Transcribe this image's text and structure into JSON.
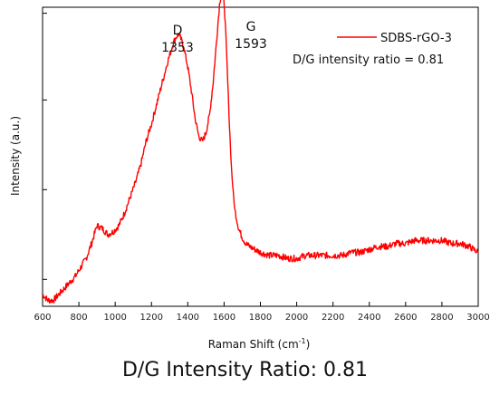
{
  "chart_data": {
    "type": "line",
    "title": "",
    "xlabel": "Raman Shift (cm",
    "xlabel_sup": "-1",
    "xlabel_close": ")",
    "ylabel": "Intensity (a.u.)",
    "xlim": [
      600,
      3000
    ],
    "ylim": [
      0,
      1
    ],
    "x_ticks": [
      "600",
      "800",
      "1000",
      "1200",
      "1400",
      "1600",
      "1800",
      "2000",
      "2200",
      "2400",
      "2600",
      "2800",
      "3000"
    ],
    "y_tick_values": [
      0.09,
      0.39,
      0.69,
      0.98
    ],
    "show_y_tick_labels": false,
    "grid": false,
    "legend_position": "top-right",
    "series": [
      {
        "name": "SDBS-rGO-3",
        "color": "#ff0000",
        "x": [
          600,
          630,
          660,
          690,
          720,
          750,
          780,
          810,
          840,
          870,
          900,
          930,
          960,
          990,
          1020,
          1050,
          1080,
          1110,
          1140,
          1170,
          1200,
          1230,
          1260,
          1290,
          1320,
          1335,
          1350,
          1365,
          1380,
          1400,
          1420,
          1440,
          1460,
          1480,
          1500,
          1520,
          1540,
          1560,
          1575,
          1585,
          1593,
          1600,
          1610,
          1620,
          1630,
          1640,
          1650,
          1660,
          1680,
          1700,
          1720,
          1740,
          1770,
          1800,
          1850,
          1900,
          1950,
          2000,
          2050,
          2100,
          2150,
          2200,
          2250,
          2300,
          2350,
          2400,
          2450,
          2500,
          2550,
          2600,
          2650,
          2700,
          2750,
          2800,
          2850,
          2900,
          2950,
          3000
        ],
        "y": [
          0.04,
          0.02,
          0.02,
          0.04,
          0.06,
          0.08,
          0.1,
          0.13,
          0.16,
          0.21,
          0.27,
          0.26,
          0.24,
          0.25,
          0.27,
          0.31,
          0.36,
          0.41,
          0.47,
          0.55,
          0.61,
          0.68,
          0.75,
          0.82,
          0.88,
          0.9,
          0.91,
          0.89,
          0.86,
          0.8,
          0.72,
          0.63,
          0.57,
          0.55,
          0.58,
          0.64,
          0.75,
          0.9,
          1.01,
          1.05,
          1.06,
          1.02,
          0.9,
          0.75,
          0.6,
          0.47,
          0.38,
          0.32,
          0.26,
          0.23,
          0.21,
          0.2,
          0.19,
          0.18,
          0.17,
          0.17,
          0.16,
          0.16,
          0.17,
          0.17,
          0.17,
          0.17,
          0.17,
          0.18,
          0.18,
          0.19,
          0.2,
          0.2,
          0.21,
          0.21,
          0.22,
          0.22,
          0.22,
          0.22,
          0.21,
          0.21,
          0.2,
          0.18
        ]
      }
    ],
    "annotations": [
      {
        "name": "D",
        "value": "1353",
        "x": 1353,
        "y": 0.91
      },
      {
        "name": "G",
        "value": "1593",
        "x": 1593,
        "y": 1.06
      }
    ],
    "legend_note": "D/G intensity ratio = 0.81"
  },
  "caption": "D/G Intensity Ratio: 0.81"
}
